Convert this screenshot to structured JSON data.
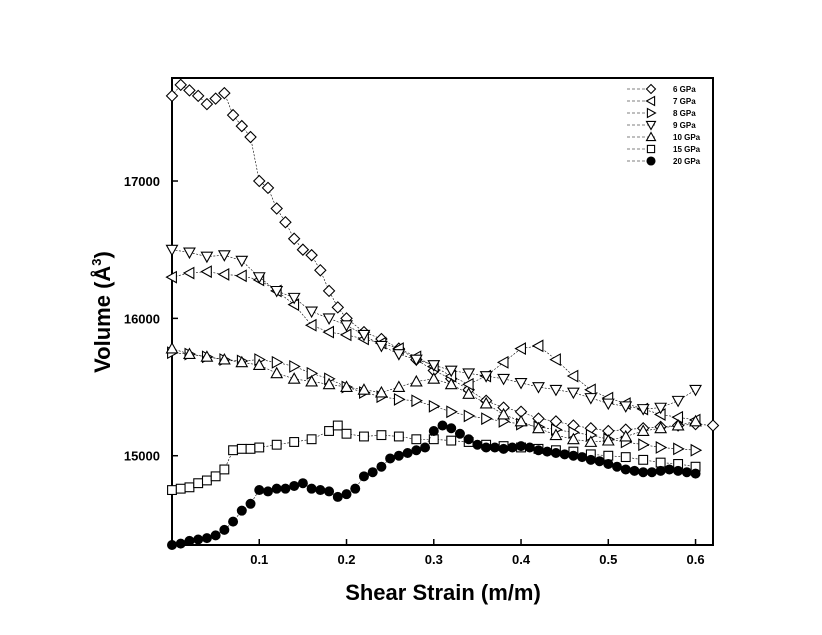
{
  "chart_data": {
    "type": "scatter",
    "title": "",
    "xlabel": "Shear Strain (m/m)",
    "ylabel_main": "Volume (Å",
    "ylabel_sup": "3",
    "ylabel_close": ")",
    "xlim": [
      0.0,
      0.62
    ],
    "ylim": [
      14350,
      17750
    ],
    "x_ticks": [
      0.1,
      0.2,
      0.3,
      0.4,
      0.5,
      0.6
    ],
    "x_tick_labels": [
      "0.1",
      "0.2",
      "0.3",
      "0.4",
      "0.5",
      "0.6"
    ],
    "y_ticks": [
      15000,
      16000,
      17000
    ],
    "y_tick_labels": [
      "15000",
      "16000",
      "17000"
    ],
    "legend_position": "top-right",
    "series": [
      {
        "name": "6 GPa",
        "marker": "diamond",
        "x": [
          0.0,
          0.01,
          0.02,
          0.03,
          0.04,
          0.05,
          0.06,
          0.07,
          0.08,
          0.09,
          0.1,
          0.11,
          0.12,
          0.13,
          0.14,
          0.15,
          0.16,
          0.17,
          0.18,
          0.19,
          0.2,
          0.22,
          0.24,
          0.26,
          0.28,
          0.3,
          0.32,
          0.34,
          0.36,
          0.38,
          0.4,
          0.42,
          0.44,
          0.46,
          0.48,
          0.5,
          0.52,
          0.54,
          0.56,
          0.58,
          0.6,
          0.62
        ],
        "y": [
          17620,
          17700,
          17660,
          17620,
          17560,
          17600,
          17640,
          17480,
          17400,
          17320,
          17000,
          16950,
          16800,
          16700,
          16580,
          16500,
          16460,
          16350,
          16200,
          16080,
          16000,
          15900,
          15850,
          15780,
          15700,
          15620,
          15560,
          15480,
          15400,
          15350,
          15320,
          15270,
          15250,
          15220,
          15200,
          15180,
          15190,
          15200,
          15210,
          15220,
          15230,
          15220
        ]
      },
      {
        "name": "7 GPa",
        "marker": "triangle-left",
        "x": [
          0.0,
          0.02,
          0.04,
          0.06,
          0.08,
          0.1,
          0.12,
          0.14,
          0.16,
          0.18,
          0.2,
          0.22,
          0.24,
          0.26,
          0.28,
          0.3,
          0.32,
          0.34,
          0.36,
          0.38,
          0.4,
          0.42,
          0.44,
          0.46,
          0.48,
          0.5,
          0.52,
          0.54,
          0.56,
          0.58,
          0.6
        ],
        "y": [
          16300,
          16330,
          16340,
          16320,
          16310,
          16280,
          16200,
          16100,
          15950,
          15900,
          15880,
          15850,
          15820,
          15780,
          15720,
          15650,
          15580,
          15520,
          15580,
          15680,
          15780,
          15800,
          15700,
          15580,
          15480,
          15420,
          15380,
          15340,
          15300,
          15280,
          15260
        ]
      },
      {
        "name": "8 GPa",
        "marker": "triangle-right",
        "x": [
          0.0,
          0.02,
          0.04,
          0.06,
          0.08,
          0.1,
          0.12,
          0.14,
          0.16,
          0.18,
          0.2,
          0.22,
          0.24,
          0.26,
          0.28,
          0.3,
          0.32,
          0.34,
          0.36,
          0.38,
          0.4,
          0.42,
          0.44,
          0.46,
          0.48,
          0.5,
          0.52,
          0.54,
          0.56,
          0.58,
          0.6
        ],
        "y": [
          15750,
          15740,
          15720,
          15700,
          15690,
          15700,
          15680,
          15650,
          15600,
          15560,
          15500,
          15460,
          15430,
          15410,
          15400,
          15360,
          15320,
          15290,
          15270,
          15250,
          15230,
          15210,
          15190,
          15170,
          15150,
          15120,
          15100,
          15080,
          15060,
          15050,
          15040
        ]
      },
      {
        "name": "9 GPa",
        "marker": "triangle-down",
        "x": [
          0.0,
          0.02,
          0.04,
          0.06,
          0.08,
          0.1,
          0.12,
          0.14,
          0.16,
          0.18,
          0.2,
          0.22,
          0.24,
          0.26,
          0.28,
          0.3,
          0.32,
          0.34,
          0.36,
          0.38,
          0.4,
          0.42,
          0.44,
          0.46,
          0.48,
          0.5,
          0.52,
          0.54,
          0.56,
          0.58,
          0.6
        ],
        "y": [
          16500,
          16480,
          16450,
          16460,
          16420,
          16300,
          16200,
          16150,
          16050,
          16000,
          15950,
          15880,
          15800,
          15740,
          15700,
          15660,
          15620,
          15600,
          15580,
          15560,
          15530,
          15500,
          15480,
          15460,
          15420,
          15380,
          15360,
          15340,
          15350,
          15400,
          15480
        ]
      },
      {
        "name": "10 GPa",
        "marker": "triangle-up",
        "x": [
          0.0,
          0.02,
          0.04,
          0.06,
          0.08,
          0.1,
          0.12,
          0.14,
          0.16,
          0.18,
          0.2,
          0.22,
          0.24,
          0.26,
          0.28,
          0.3,
          0.32,
          0.34,
          0.36,
          0.38,
          0.4,
          0.42,
          0.44,
          0.46,
          0.48,
          0.5,
          0.52,
          0.54,
          0.56,
          0.58,
          0.6
        ],
        "y": [
          15780,
          15740,
          15720,
          15700,
          15680,
          15660,
          15600,
          15560,
          15540,
          15520,
          15500,
          15480,
          15460,
          15500,
          15540,
          15560,
          15520,
          15450,
          15380,
          15300,
          15250,
          15200,
          15150,
          15120,
          15100,
          15110,
          15140,
          15180,
          15200,
          15220,
          15250
        ]
      },
      {
        "name": "15 GPa",
        "marker": "square",
        "x": [
          0.0,
          0.01,
          0.02,
          0.03,
          0.04,
          0.05,
          0.06,
          0.07,
          0.08,
          0.09,
          0.1,
          0.12,
          0.14,
          0.16,
          0.18,
          0.19,
          0.2,
          0.22,
          0.24,
          0.26,
          0.28,
          0.3,
          0.32,
          0.34,
          0.36,
          0.38,
          0.4,
          0.42,
          0.44,
          0.46,
          0.48,
          0.5,
          0.52,
          0.54,
          0.56,
          0.58,
          0.6
        ],
        "y": [
          14750,
          14760,
          14770,
          14800,
          14820,
          14850,
          14900,
          15040,
          15050,
          15050,
          15060,
          15080,
          15100,
          15120,
          15180,
          15220,
          15160,
          15140,
          15150,
          15140,
          15120,
          15120,
          15110,
          15100,
          15080,
          15070,
          15060,
          15050,
          15040,
          15030,
          15010,
          15000,
          14990,
          14970,
          14950,
          14940,
          14920
        ]
      },
      {
        "name": "20 GPa",
        "marker": "circle-filled",
        "x": [
          0.0,
          0.01,
          0.02,
          0.03,
          0.04,
          0.05,
          0.06,
          0.07,
          0.08,
          0.09,
          0.1,
          0.11,
          0.12,
          0.13,
          0.14,
          0.15,
          0.16,
          0.17,
          0.18,
          0.19,
          0.2,
          0.21,
          0.22,
          0.23,
          0.24,
          0.25,
          0.26,
          0.27,
          0.28,
          0.29,
          0.3,
          0.31,
          0.32,
          0.33,
          0.34,
          0.35,
          0.36,
          0.37,
          0.38,
          0.39,
          0.4,
          0.41,
          0.42,
          0.43,
          0.44,
          0.45,
          0.46,
          0.47,
          0.48,
          0.49,
          0.5,
          0.51,
          0.52,
          0.53,
          0.54,
          0.55,
          0.56,
          0.57,
          0.58,
          0.59,
          0.6
        ],
        "y": [
          14350,
          14360,
          14380,
          14390,
          14400,
          14420,
          14460,
          14520,
          14600,
          14650,
          14750,
          14740,
          14760,
          14760,
          14780,
          14800,
          14760,
          14750,
          14740,
          14700,
          14720,
          14760,
          14850,
          14880,
          14920,
          14980,
          15000,
          15020,
          15040,
          15060,
          15180,
          15220,
          15200,
          15160,
          15120,
          15080,
          15060,
          15060,
          15050,
          15060,
          15070,
          15060,
          15040,
          15030,
          15020,
          15010,
          15000,
          14990,
          14970,
          14960,
          14940,
          14920,
          14900,
          14890,
          14880,
          14880,
          14890,
          14900,
          14890,
          14880,
          14870
        ]
      }
    ]
  }
}
